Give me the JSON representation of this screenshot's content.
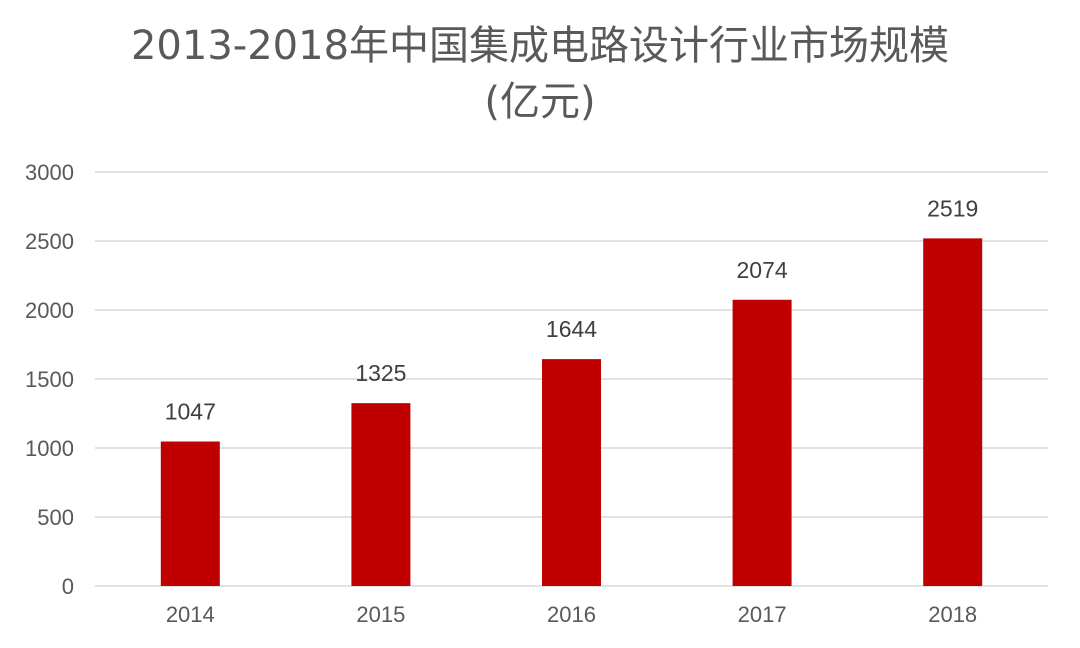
{
  "title_line1": "2013-2018年中国集成电路设计行业市场规模",
  "title_line2": "(亿元)",
  "colors": {
    "bar": "#C00000",
    "grid": "#D9D9D9",
    "text": "#595959"
  },
  "chart_data": {
    "type": "bar",
    "title": "2013-2018年中国集成电路设计行业市场规模 (亿元)",
    "categories": [
      "2014",
      "2015",
      "2016",
      "2017",
      "2018"
    ],
    "values": [
      1047,
      1325,
      1644,
      2074,
      2519
    ],
    "ylim": [
      0,
      3000
    ],
    "yticks": [
      0,
      500,
      1000,
      1500,
      2000,
      2500,
      3000
    ],
    "grid": true,
    "data_labels": true
  }
}
